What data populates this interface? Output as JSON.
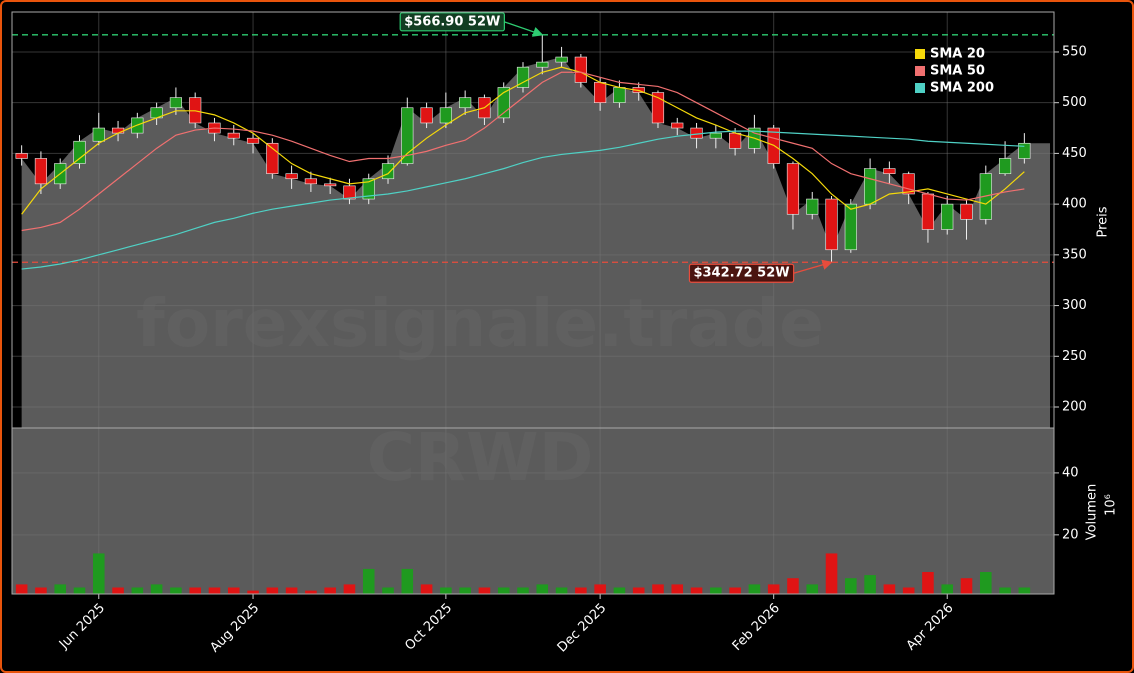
{
  "chart_data": [
    {
      "type": "candlestick",
      "watermark": "forexsignale.trade",
      "symbol": "CRWD",
      "ylabel": "Preis",
      "ylim": [
        179.3,
        589.4
      ],
      "yticks": [
        200,
        250,
        300,
        350,
        400,
        450,
        500,
        550
      ],
      "grid": true,
      "fill": "#5b5b5b",
      "up_color": "#1f9a1f",
      "down_color": "#e01414",
      "legend": "upper right",
      "categories": [
        null,
        null,
        null,
        null,
        "Jun 2025",
        null,
        null,
        null,
        null,
        null,
        null,
        null,
        "Aug 2025",
        null,
        null,
        null,
        null,
        null,
        null,
        null,
        null,
        null,
        "Oct 2025",
        null,
        null,
        null,
        null,
        null,
        null,
        null,
        "Dec 2025",
        null,
        null,
        null,
        null,
        null,
        null,
        null,
        null,
        "Feb 2026",
        null,
        null,
        null,
        null,
        null,
        null,
        null,
        null,
        "Apr 2026",
        null,
        null,
        null,
        null
      ],
      "open": [
        450,
        445,
        420,
        440,
        462,
        475,
        470,
        485,
        495,
        505,
        480,
        470,
        465,
        460,
        430,
        425,
        420,
        418,
        405,
        425,
        440,
        495,
        480,
        495,
        505,
        485,
        515,
        535,
        540,
        545,
        520,
        500,
        515,
        510,
        480,
        475,
        465,
        470,
        455,
        475,
        440,
        390,
        405,
        355,
        400,
        435,
        430,
        410,
        375,
        400,
        385,
        430,
        445
      ],
      "high": [
        458,
        452,
        445,
        468,
        490,
        482,
        490,
        500,
        515,
        510,
        485,
        478,
        470,
        465,
        438,
        432,
        426,
        425,
        430,
        448,
        505,
        500,
        510,
        512,
        508,
        520,
        540,
        566.9,
        555,
        548,
        525,
        522,
        520,
        512,
        485,
        480,
        478,
        475,
        488,
        478,
        442,
        412,
        408,
        405,
        445,
        442,
        432,
        412,
        408,
        405,
        438,
        462,
        470
      ],
      "low": [
        438,
        410,
        415,
        435,
        458,
        462,
        465,
        478,
        488,
        475,
        462,
        458,
        450,
        425,
        415,
        412,
        410,
        400,
        400,
        420,
        438,
        475,
        475,
        488,
        478,
        480,
        510,
        528,
        535,
        515,
        492,
        495,
        502,
        475,
        468,
        455,
        455,
        448,
        450,
        435,
        375,
        385,
        342.72,
        352,
        395,
        420,
        400,
        362,
        370,
        365,
        380,
        428,
        440
      ],
      "close": [
        445,
        420,
        440,
        462,
        475,
        470,
        485,
        495,
        505,
        480,
        470,
        465,
        460,
        430,
        425,
        420,
        418,
        405,
        425,
        440,
        495,
        480,
        495,
        505,
        485,
        515,
        535,
        540,
        545,
        520,
        500,
        515,
        510,
        480,
        475,
        465,
        470,
        455,
        475,
        440,
        390,
        405,
        355,
        400,
        435,
        430,
        410,
        375,
        400,
        385,
        430,
        445,
        460
      ],
      "series": [
        {
          "name": "SMA 20",
          "color": "#f5d90a",
          "values": [
            390,
            415,
            430,
            445,
            460,
            470,
            478,
            485,
            492,
            492,
            488,
            480,
            470,
            455,
            440,
            430,
            425,
            420,
            422,
            430,
            450,
            465,
            478,
            490,
            495,
            510,
            520,
            530,
            535,
            530,
            520,
            515,
            512,
            505,
            495,
            485,
            478,
            470,
            465,
            458,
            445,
            430,
            410,
            395,
            400,
            410,
            412,
            415,
            410,
            405,
            400,
            415,
            432
          ]
        },
        {
          "name": "SMA 50",
          "color": "#f07070",
          "values": [
            374,
            377,
            382,
            395,
            410,
            425,
            440,
            455,
            468,
            473,
            475,
            474,
            472,
            468,
            462,
            455,
            448,
            442,
            445,
            445,
            448,
            452,
            458,
            463,
            475,
            490,
            505,
            520,
            530,
            530,
            525,
            520,
            518,
            516,
            510,
            500,
            490,
            480,
            470,
            465,
            460,
            455,
            440,
            430,
            425,
            420,
            415,
            410,
            405,
            404,
            408,
            412,
            415
          ]
        },
        {
          "name": "SMA 200",
          "color": "#4fd1c5",
          "values": [
            336,
            338,
            341,
            345,
            350,
            355,
            360,
            365,
            370,
            376,
            382,
            386,
            391,
            395,
            398,
            401,
            404,
            406,
            408,
            410,
            413,
            417,
            421,
            425,
            430,
            435,
            441,
            446,
            449,
            451,
            453,
            456,
            460,
            464,
            467,
            469,
            471,
            472,
            472,
            471,
            470,
            469,
            468,
            467,
            466,
            465,
            464,
            462,
            461,
            460,
            459,
            458,
            457
          ]
        }
      ],
      "annotations": [
        {
          "text": "$566.90 52W",
          "value": 566.9,
          "color": "#2ecc71"
        },
        {
          "text": "$342.72 52W",
          "value": 342.72,
          "color": "#e74c3c"
        }
      ]
    },
    {
      "type": "bar",
      "ylabel": "Volumen",
      "unit_label": "10⁶",
      "ylim": [
        0.9,
        54.5
      ],
      "yticks": [
        20,
        40
      ],
      "values": [
        4,
        3,
        4,
        3,
        14,
        3,
        3,
        4,
        3,
        3,
        3,
        3,
        2,
        3,
        3,
        2,
        3,
        4,
        9,
        3,
        9,
        4,
        3,
        3,
        3,
        3,
        3,
        4,
        3,
        3,
        4,
        3,
        3,
        4,
        4,
        3,
        3,
        3,
        4,
        4,
        6,
        4,
        14,
        6,
        7,
        4,
        3,
        8,
        4,
        6,
        8,
        3,
        3
      ]
    }
  ]
}
